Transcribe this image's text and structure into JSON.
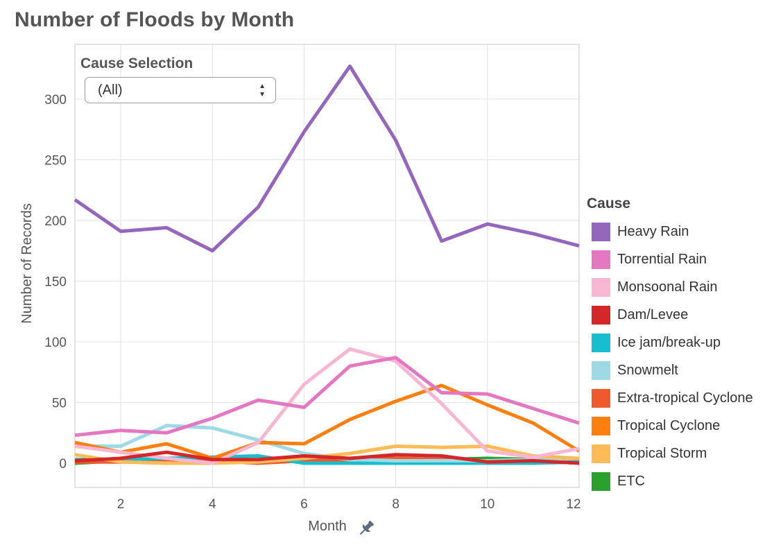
{
  "title": "Number of Floods by Month",
  "filter": {
    "label": "Cause Selection",
    "value": "(All)"
  },
  "legend_title": "Cause",
  "chart_data": {
    "type": "line",
    "title": "Number of Floods by Month",
    "xlabel": "Month",
    "ylabel": "Number of Records",
    "x": [
      1,
      2,
      3,
      4,
      5,
      6,
      7,
      8,
      9,
      10,
      11,
      12
    ],
    "xlim": [
      1,
      12
    ],
    "ylim": [
      -20,
      345
    ],
    "xticks": [
      2,
      4,
      6,
      8,
      10,
      12
    ],
    "yticks": [
      0,
      50,
      100,
      150,
      200,
      250,
      300
    ],
    "grid": true,
    "legend_position": "right",
    "series": [
      {
        "name": "ETC",
        "color": "#2ca02c",
        "values": [
          0,
          2,
          2,
          3,
          1,
          3,
          4,
          4,
          3,
          4,
          3,
          2
        ]
      },
      {
        "name": "Extra-tropical Cyclone",
        "color": "#ee5a2c",
        "values": [
          1,
          1,
          1,
          2,
          0,
          2,
          3,
          4,
          3,
          1,
          1,
          1
        ]
      },
      {
        "name": "Ice jam/break-up",
        "color": "#17becf",
        "values": [
          3,
          3,
          4,
          5,
          6,
          0,
          0,
          0,
          0,
          0,
          0,
          1
        ]
      },
      {
        "name": "Snowmelt",
        "color": "#9edae5",
        "values": [
          14,
          14,
          31,
          29,
          19,
          8,
          3,
          2,
          2,
          2,
          3,
          4
        ]
      },
      {
        "name": "Tropical Storm",
        "color": "#ffbb55",
        "values": [
          7,
          1,
          0,
          0,
          1,
          4,
          8,
          14,
          13,
          14,
          6,
          4
        ]
      },
      {
        "name": "Tropical Cyclone",
        "color": "#ff7f0e",
        "values": [
          17,
          9,
          16,
          4,
          17,
          16,
          36,
          51,
          64,
          48,
          33,
          10
        ]
      },
      {
        "name": "Monsoonal Rain",
        "color": "#f7b6d2",
        "values": [
          14,
          9,
          4,
          0,
          17,
          65,
          94,
          84,
          49,
          10,
          5,
          12
        ]
      },
      {
        "name": "Torrential Rain",
        "color": "#e377c2",
        "values": [
          23,
          27,
          25,
          37,
          52,
          46,
          80,
          87,
          58,
          57,
          45,
          33
        ]
      },
      {
        "name": "Dam/Levee",
        "color": "#d62728",
        "values": [
          2,
          4,
          9,
          3,
          3,
          6,
          4,
          7,
          6,
          1,
          2,
          0
        ]
      },
      {
        "name": "Heavy Rain",
        "color": "#9467bd",
        "values": [
          217,
          191,
          194,
          175,
          211,
          273,
          327,
          266,
          183,
          197,
          189,
          179
        ]
      }
    ],
    "legend_order": [
      "Heavy Rain",
      "Torrential Rain",
      "Monsoonal Rain",
      "Dam/Levee",
      "Ice jam/break-up",
      "Snowmelt",
      "Extra-tropical Cyclone",
      "Tropical Cyclone",
      "Tropical Storm",
      "ETC"
    ]
  }
}
